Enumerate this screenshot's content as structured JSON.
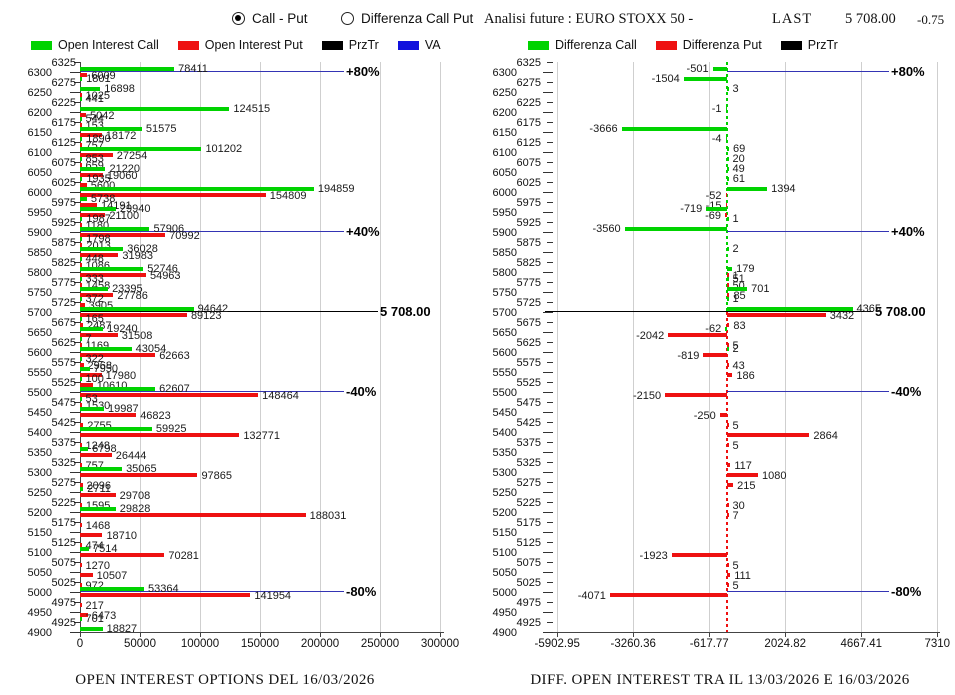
{
  "header": {
    "radio_call_put": "Call - Put",
    "radio_differenza": "Differenza Call Put",
    "right_title": "Analisi future : EURO STOXX 50 -",
    "last_label": "LAST",
    "last_value": "5 708.00",
    "last_change": "-0.75"
  },
  "colors": {
    "call_green": "#00d300",
    "put_red": "#ee1111",
    "prztr_black": "#000000",
    "va_blue": "#3434b4",
    "grid_gray": "#cfcfcf"
  },
  "strike_axis": {
    "step": 25,
    "labels": [
      6325,
      6300,
      6275,
      6250,
      6225,
      6200,
      6175,
      6150,
      6125,
      6100,
      6075,
      6050,
      6025,
      6000,
      5975,
      5950,
      5925,
      5900,
      5875,
      5850,
      5825,
      5800,
      5775,
      5750,
      5725,
      5700,
      5675,
      5650,
      5625,
      5600,
      5575,
      5550,
      5525,
      5500,
      5475,
      5450,
      5425,
      5400,
      5375,
      5350,
      5325,
      5300,
      5275,
      5250,
      5225,
      5200,
      5175,
      5150,
      5125,
      5100,
      5075,
      5050,
      5025,
      5000,
      4975,
      4950,
      4925,
      4900
    ]
  },
  "chart_data": [
    {
      "type": "bar",
      "orientation": "horizontal",
      "title": "OPEN INTEREST OPTIONS DEL 16/03/2026",
      "legend": [
        {
          "label": "Open Interest Call",
          "color": "#00d300"
        },
        {
          "label": "Open Interest Put",
          "color": "#ee1111"
        },
        {
          "label": "PrzTr",
          "color": "#000000"
        },
        {
          "label": "VA",
          "color": "#1111dd"
        }
      ],
      "x_ticks": [
        "0",
        "50000",
        "100000",
        "150000",
        "200000",
        "250000",
        "300000"
      ],
      "x_tick_values": [
        0,
        50000,
        100000,
        150000,
        200000,
        250000,
        300000
      ],
      "x_range": [
        0,
        300000
      ],
      "series_names": [
        "Open Interest Call",
        "Open Interest Put"
      ],
      "bars": [
        [
          6300,
          78411,
          6009
        ],
        [
          6275,
          1801,
          null
        ],
        [
          6250,
          16898,
          1025
        ],
        [
          6225,
          441,
          null
        ],
        [
          6200,
          124515,
          5042
        ],
        [
          6175,
          544,
          153
        ],
        [
          6150,
          51575,
          18172
        ],
        [
          6125,
          1890,
          757
        ],
        [
          6100,
          101202,
          27254
        ],
        [
          6075,
          853,
          659
        ],
        [
          6050,
          21220,
          19060
        ],
        [
          6025,
          1935,
          5600
        ],
        [
          6000,
          194859,
          154809
        ],
        [
          5975,
          5738,
          14191
        ],
        [
          5950,
          29940,
          21100
        ],
        [
          5925,
          1987,
          1180
        ],
        [
          5900,
          57906,
          70992
        ],
        [
          5875,
          1798,
          2013
        ],
        [
          5850,
          36028,
          31983
        ],
        [
          5825,
          448,
          1086
        ],
        [
          5800,
          52746,
          54963
        ],
        [
          5775,
          333,
          1458
        ],
        [
          5750,
          23395,
          27786
        ],
        [
          5725,
          372,
          3905
        ],
        [
          5700,
          94642,
          89123
        ],
        [
          5675,
          165,
          2487
        ],
        [
          5650,
          19240,
          31508
        ],
        [
          5625,
          7,
          1169
        ],
        [
          5600,
          43054,
          62663
        ],
        [
          5575,
          322,
          2968
        ],
        [
          5550,
          7950,
          17980
        ],
        [
          5525,
          100,
          10610
        ],
        [
          5500,
          62607,
          148464
        ],
        [
          5475,
          53,
          1530
        ],
        [
          5450,
          19987,
          46823
        ],
        [
          5425,
          null,
          2755
        ],
        [
          5400,
          59925,
          132771
        ],
        [
          5375,
          null,
          1248
        ],
        [
          5350,
          6798,
          26444
        ],
        [
          5325,
          null,
          757
        ],
        [
          5300,
          35065,
          97865
        ],
        [
          5275,
          null,
          2096
        ],
        [
          5250,
          2711,
          29708
        ],
        [
          5225,
          null,
          1595
        ],
        [
          5200,
          29828,
          188031
        ],
        [
          5175,
          null,
          1468
        ],
        [
          5150,
          null,
          18710
        ],
        [
          5125,
          null,
          474
        ],
        [
          5100,
          7514,
          70281
        ],
        [
          5075,
          null,
          1270
        ],
        [
          5050,
          null,
          10507
        ],
        [
          5025,
          null,
          972
        ],
        [
          5000,
          53364,
          141954
        ],
        [
          4975,
          null,
          217
        ],
        [
          4950,
          null,
          6473
        ],
        [
          4925,
          701,
          null
        ],
        [
          4900,
          18827,
          null
        ]
      ],
      "ref_lines": [
        {
          "strike": 6300,
          "label": "+80%",
          "type": "va"
        },
        {
          "strike": 5900,
          "label": "+40%",
          "type": "va"
        },
        {
          "strike": 5700,
          "label": "5 708.00",
          "type": "prz"
        },
        {
          "strike": 5500,
          "label": "-40%",
          "type": "va"
        },
        {
          "strike": 5000,
          "label": "-80%",
          "type": "va"
        }
      ]
    },
    {
      "type": "bar",
      "orientation": "horizontal",
      "title": "DIFF. OPEN INTEREST TRA IL 13/03/2026 E 16/03/2026",
      "legend": [
        {
          "label": "Differenza Call",
          "color": "#00d300"
        },
        {
          "label": "Differenza Put",
          "color": "#ee1111"
        },
        {
          "label": "PrzTr",
          "color": "#000000"
        }
      ],
      "x_ticks": [
        "-5902.95",
        "-3260.36",
        "-617.77",
        "2024.82",
        "4667.41",
        "7310"
      ],
      "x_tick_values": [
        -5902.95,
        -3260.36,
        -617.77,
        2024.82,
        4667.41,
        7310
      ],
      "x_range": [
        -5902.95,
        7310
      ],
      "series_names": [
        "Differenza Call",
        "Differenza Put"
      ],
      "bars": [
        [
          6300,
          -501,
          null
        ],
        [
          6275,
          -1504,
          null
        ],
        [
          6250,
          3,
          null
        ],
        [
          6200,
          -1,
          null
        ],
        [
          6150,
          -3666,
          null
        ],
        [
          6125,
          -4,
          null
        ],
        [
          6100,
          69,
          null
        ],
        [
          6075,
          20,
          null
        ],
        [
          6050,
          49,
          null
        ],
        [
          6025,
          61,
          null
        ],
        [
          6000,
          1394,
          -52
        ],
        [
          5975,
          null,
          -15
        ],
        [
          5950,
          -719,
          -69
        ],
        [
          5925,
          1,
          null
        ],
        [
          5900,
          -3560,
          null
        ],
        [
          5850,
          2,
          null
        ],
        [
          5800,
          179,
          1
        ],
        [
          5775,
          51,
          50
        ],
        [
          5750,
          701,
          85
        ],
        [
          5725,
          1,
          null
        ],
        [
          5700,
          4365,
          3432
        ],
        [
          5675,
          null,
          83
        ],
        [
          5650,
          -62,
          -2042
        ],
        [
          5625,
          null,
          5
        ],
        [
          5600,
          2,
          -819
        ],
        [
          5575,
          null,
          43
        ],
        [
          5550,
          null,
          186
        ],
        [
          5500,
          null,
          -2150
        ],
        [
          5450,
          null,
          -250
        ],
        [
          5425,
          null,
          5
        ],
        [
          5400,
          null,
          2864
        ],
        [
          5375,
          null,
          5
        ],
        [
          5325,
          null,
          117
        ],
        [
          5300,
          null,
          1080
        ],
        [
          5275,
          null,
          215
        ],
        [
          5225,
          null,
          30
        ],
        [
          5200,
          null,
          7
        ],
        [
          5100,
          null,
          -1923
        ],
        [
          5075,
          null,
          5
        ],
        [
          5050,
          null,
          111
        ],
        [
          5025,
          null,
          5
        ],
        [
          5000,
          null,
          -4071
        ]
      ],
      "ref_lines": [
        {
          "strike": 6300,
          "label": "+80%",
          "type": "va"
        },
        {
          "strike": 5900,
          "label": "+40%",
          "type": "va"
        },
        {
          "strike": 5700,
          "label": "5 708.00",
          "type": "prz"
        },
        {
          "strike": 5500,
          "label": "-40%",
          "type": "va"
        },
        {
          "strike": 5000,
          "label": "-80%",
          "type": "va"
        }
      ]
    }
  ]
}
